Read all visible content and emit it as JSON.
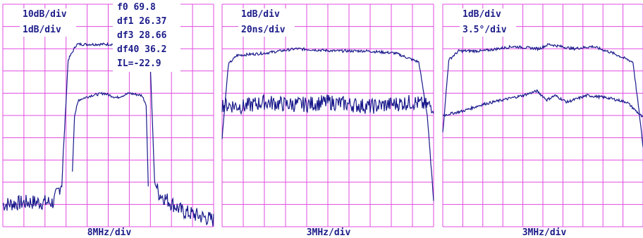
{
  "colors": {
    "grid": "#e04ce0",
    "trace": "#1a1a8c",
    "background": "#ffffff",
    "label_bg": "#ffffff"
  },
  "panels": [
    {
      "scale_lines": [
        "10dB/div",
        "1dB/div"
      ],
      "xlabel": "8MHz/div"
    },
    {
      "scale_lines": [
        "1dB/div",
        "20ns/div"
      ],
      "xlabel": "3MHz/div"
    },
    {
      "scale_lines": [
        "1dB/div",
        "3.5°/div"
      ],
      "xlabel": "3MHz/div"
    }
  ],
  "readouts": [
    "f0 69.8",
    "df1 26.37",
    "df3 28.66",
    "df40 36.2",
    "IL=-22.9"
  ],
  "chart_data": [
    {
      "type": "line",
      "grid": "10x10 divisions",
      "x_axis": "frequency, 8MHz/div",
      "series": [
        {
          "scale": "10dB/div",
          "x_div": [
            0,
            1.2,
            2.4,
            2.8,
            3.1,
            3.5,
            4.5,
            5.5,
            6.5,
            6.7,
            7,
            7.2,
            7.4,
            8.5,
            10
          ],
          "y_div": [
            1.0,
            1.1,
            1.1,
            2.0,
            7.5,
            8.2,
            8.2,
            8.2,
            8.1,
            8.0,
            7.2,
            2.0,
            1.5,
            0.7,
            0.3
          ]
        },
        {
          "scale": "1dB/div",
          "x_div": [
            3.2,
            3.4,
            3.6,
            4.2,
            4.8,
            5.4,
            6.0,
            6.6,
            6.8,
            6.95
          ],
          "y_div": [
            0,
            5.0,
            5.7,
            5.9,
            6.0,
            5.8,
            6.0,
            5.9,
            5.5,
            0
          ]
        }
      ]
    },
    {
      "type": "line",
      "grid": "10x10 divisions",
      "x_axis": "frequency, 3MHz/div",
      "series": [
        {
          "scale": "1dB/div",
          "x_div": [
            0,
            0.3,
            0.7,
            2,
            3.5,
            5.3,
            6.8,
            8.2,
            9.3,
            9.7,
            10
          ],
          "y_div": [
            4.0,
            7.3,
            7.7,
            7.8,
            8.0,
            7.9,
            7.9,
            7.8,
            7.4,
            5.0,
            1.2
          ]
        },
        {
          "scale": "20ns/div",
          "x_div": [
            0,
            1,
            2,
            3,
            4,
            5,
            6,
            7,
            8,
            9,
            10
          ],
          "y_div": [
            5.5,
            5.4,
            5.6,
            5.5,
            5.5,
            5.6,
            5.5,
            5.4,
            5.5,
            5.6,
            5.4
          ]
        }
      ]
    },
    {
      "type": "line",
      "grid": "10x10 divisions",
      "x_axis": "frequency, 3MHz/div",
      "series": [
        {
          "scale": "1dB/div",
          "x_div": [
            0,
            0.3,
            0.8,
            2,
            3.5,
            4.8,
            5.3,
            6.5,
            7.5,
            8.5,
            9.5,
            9.8,
            10
          ],
          "y_div": [
            4.2,
            7.5,
            7.9,
            7.9,
            8.1,
            8.0,
            8.2,
            8.0,
            8.1,
            7.8,
            7.4,
            5.2,
            3.6
          ]
        },
        {
          "scale": "3.5°/div",
          "x_div": [
            0,
            1,
            2,
            3,
            4,
            4.7,
            5.2,
            5.6,
            6.2,
            7.2,
            8.2,
            9.2,
            10
          ],
          "y_div": [
            5.0,
            5.2,
            5.5,
            5.7,
            5.9,
            6.1,
            5.7,
            5.9,
            5.6,
            5.9,
            5.8,
            5.6,
            4.9
          ]
        }
      ]
    }
  ]
}
